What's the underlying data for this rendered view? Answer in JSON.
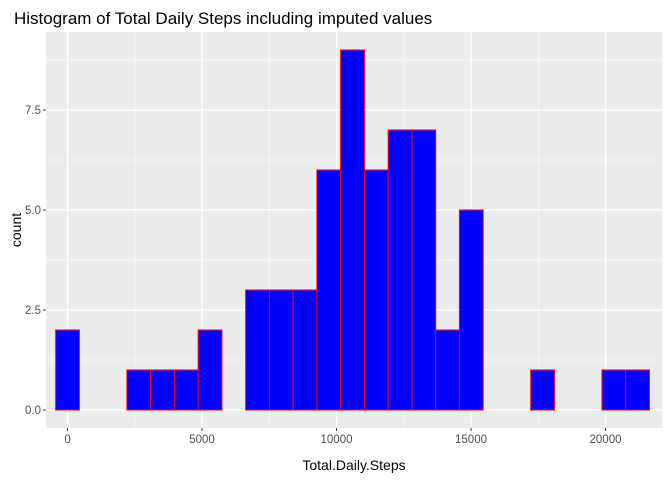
{
  "chart_data": {
    "type": "bar",
    "title": "Histogram of Total Daily Steps including imputed values",
    "xlabel": "Total.Daily.Steps",
    "ylabel": "count",
    "xlim": [
      -800,
      22100
    ],
    "ylim": [
      -0.45,
      9.45
    ],
    "x_ticks": [
      0,
      5000,
      10000,
      15000,
      20000
    ],
    "x_tick_labels": [
      "0",
      "5000",
      "10000",
      "15000",
      "20000"
    ],
    "y_ticks": [
      0,
      2.5,
      5,
      7.5
    ],
    "y_tick_labels": [
      "0.0",
      "2.5",
      "5.0",
      "7.5"
    ],
    "bin_width": 883,
    "bins": [
      {
        "x": 0,
        "count": 2
      },
      {
        "x": 883,
        "count": 0
      },
      {
        "x": 1766,
        "count": 0
      },
      {
        "x": 2649,
        "count": 1
      },
      {
        "x": 3532,
        "count": 1
      },
      {
        "x": 4415,
        "count": 1
      },
      {
        "x": 5298,
        "count": 2
      },
      {
        "x": 6181,
        "count": 0
      },
      {
        "x": 7064,
        "count": 3
      },
      {
        "x": 7947,
        "count": 3
      },
      {
        "x": 8830,
        "count": 3
      },
      {
        "x": 9713,
        "count": 6
      },
      {
        "x": 10596,
        "count": 9
      },
      {
        "x": 11479,
        "count": 6
      },
      {
        "x": 12362,
        "count": 7
      },
      {
        "x": 13245,
        "count": 7
      },
      {
        "x": 14128,
        "count": 2
      },
      {
        "x": 15011,
        "count": 5
      },
      {
        "x": 15894,
        "count": 0
      },
      {
        "x": 16777,
        "count": 0
      },
      {
        "x": 17660,
        "count": 1
      },
      {
        "x": 18543,
        "count": 0
      },
      {
        "x": 19426,
        "count": 0
      },
      {
        "x": 20309,
        "count": 1
      },
      {
        "x": 21192,
        "count": 1
      }
    ],
    "fill_color": "#0000ff",
    "outline_color": "#ff0000",
    "panel_background": "#ebebeb",
    "grid_color": "#ffffff",
    "grid": true,
    "legend": "none"
  }
}
